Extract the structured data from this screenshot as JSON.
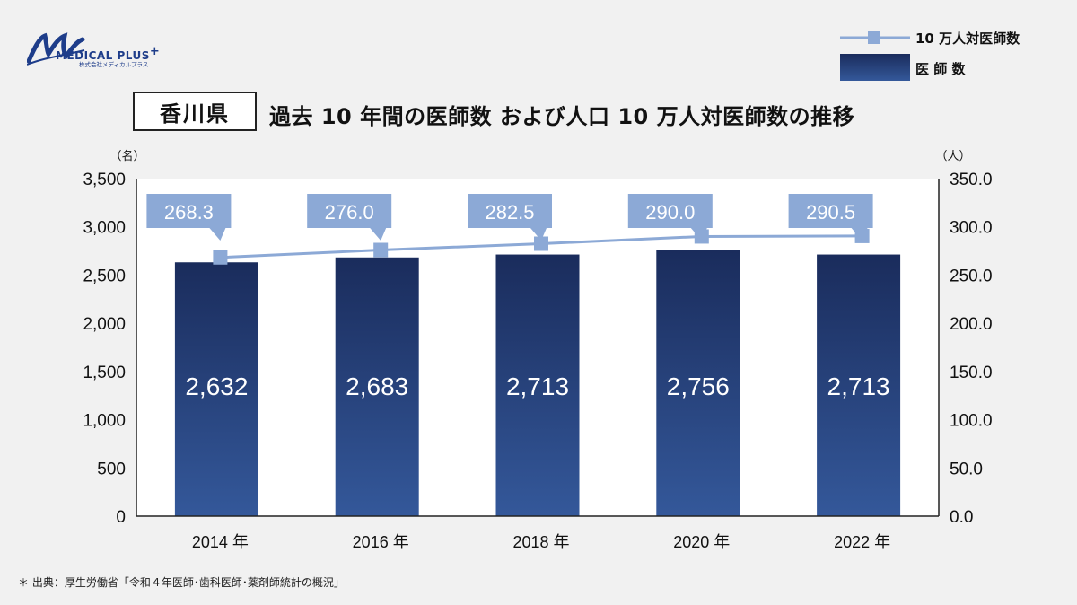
{
  "brand": {
    "name": "MEDICAL PLUS",
    "plus_mark": "+",
    "subtitle": "株式会社メディカルプラス"
  },
  "header": {
    "prefecture": "香川県",
    "title": "過去 10 年間の医師数 および人口 10 万人対医師数の推移"
  },
  "legend": {
    "line_label": "10 万人対医師数",
    "bar_label": "医 師 数"
  },
  "source_note": "＊ 出典：厚生労働省「令和４年医師･歯科医師･薬剤師統計の概況」",
  "colors": {
    "bar_top": "#1a2c5c",
    "bar_bottom": "#34589a",
    "line": "#8ca9d6",
    "callout": "#8ca9d6"
  },
  "chart_data": {
    "type": "bar+line",
    "categories": [
      "2014 年",
      "2016 年",
      "2018 年",
      "2020 年",
      "2022 年"
    ],
    "series": [
      {
        "name": "医 師 数",
        "type": "bar",
        "axis": "left",
        "values": [
          2632,
          2683,
          2713,
          2756,
          2713
        ],
        "labels": [
          "2,632",
          "2,683",
          "2,713",
          "2,756",
          "2,713"
        ]
      },
      {
        "name": "10 万人対医師数",
        "type": "line",
        "axis": "right",
        "values": [
          268.3,
          276.0,
          282.5,
          290.0,
          290.5
        ],
        "labels": [
          "268.3",
          "276.0",
          "282.5",
          "290.0",
          "290.5"
        ]
      }
    ],
    "y_left": {
      "unit": "（名）",
      "range": [
        0,
        3500
      ],
      "ticks": [
        "0",
        "500",
        "1,000",
        "1,500",
        "2,000",
        "2,500",
        "3,000",
        "3,500"
      ]
    },
    "y_right": {
      "unit": "（人）",
      "range": [
        0,
        350
      ],
      "ticks": [
        "0.0",
        "50.0",
        "100.0",
        "150.0",
        "200.0",
        "250.0",
        "300.0",
        "350.0"
      ]
    },
    "grid": false,
    "legend_position": "top-right"
  }
}
